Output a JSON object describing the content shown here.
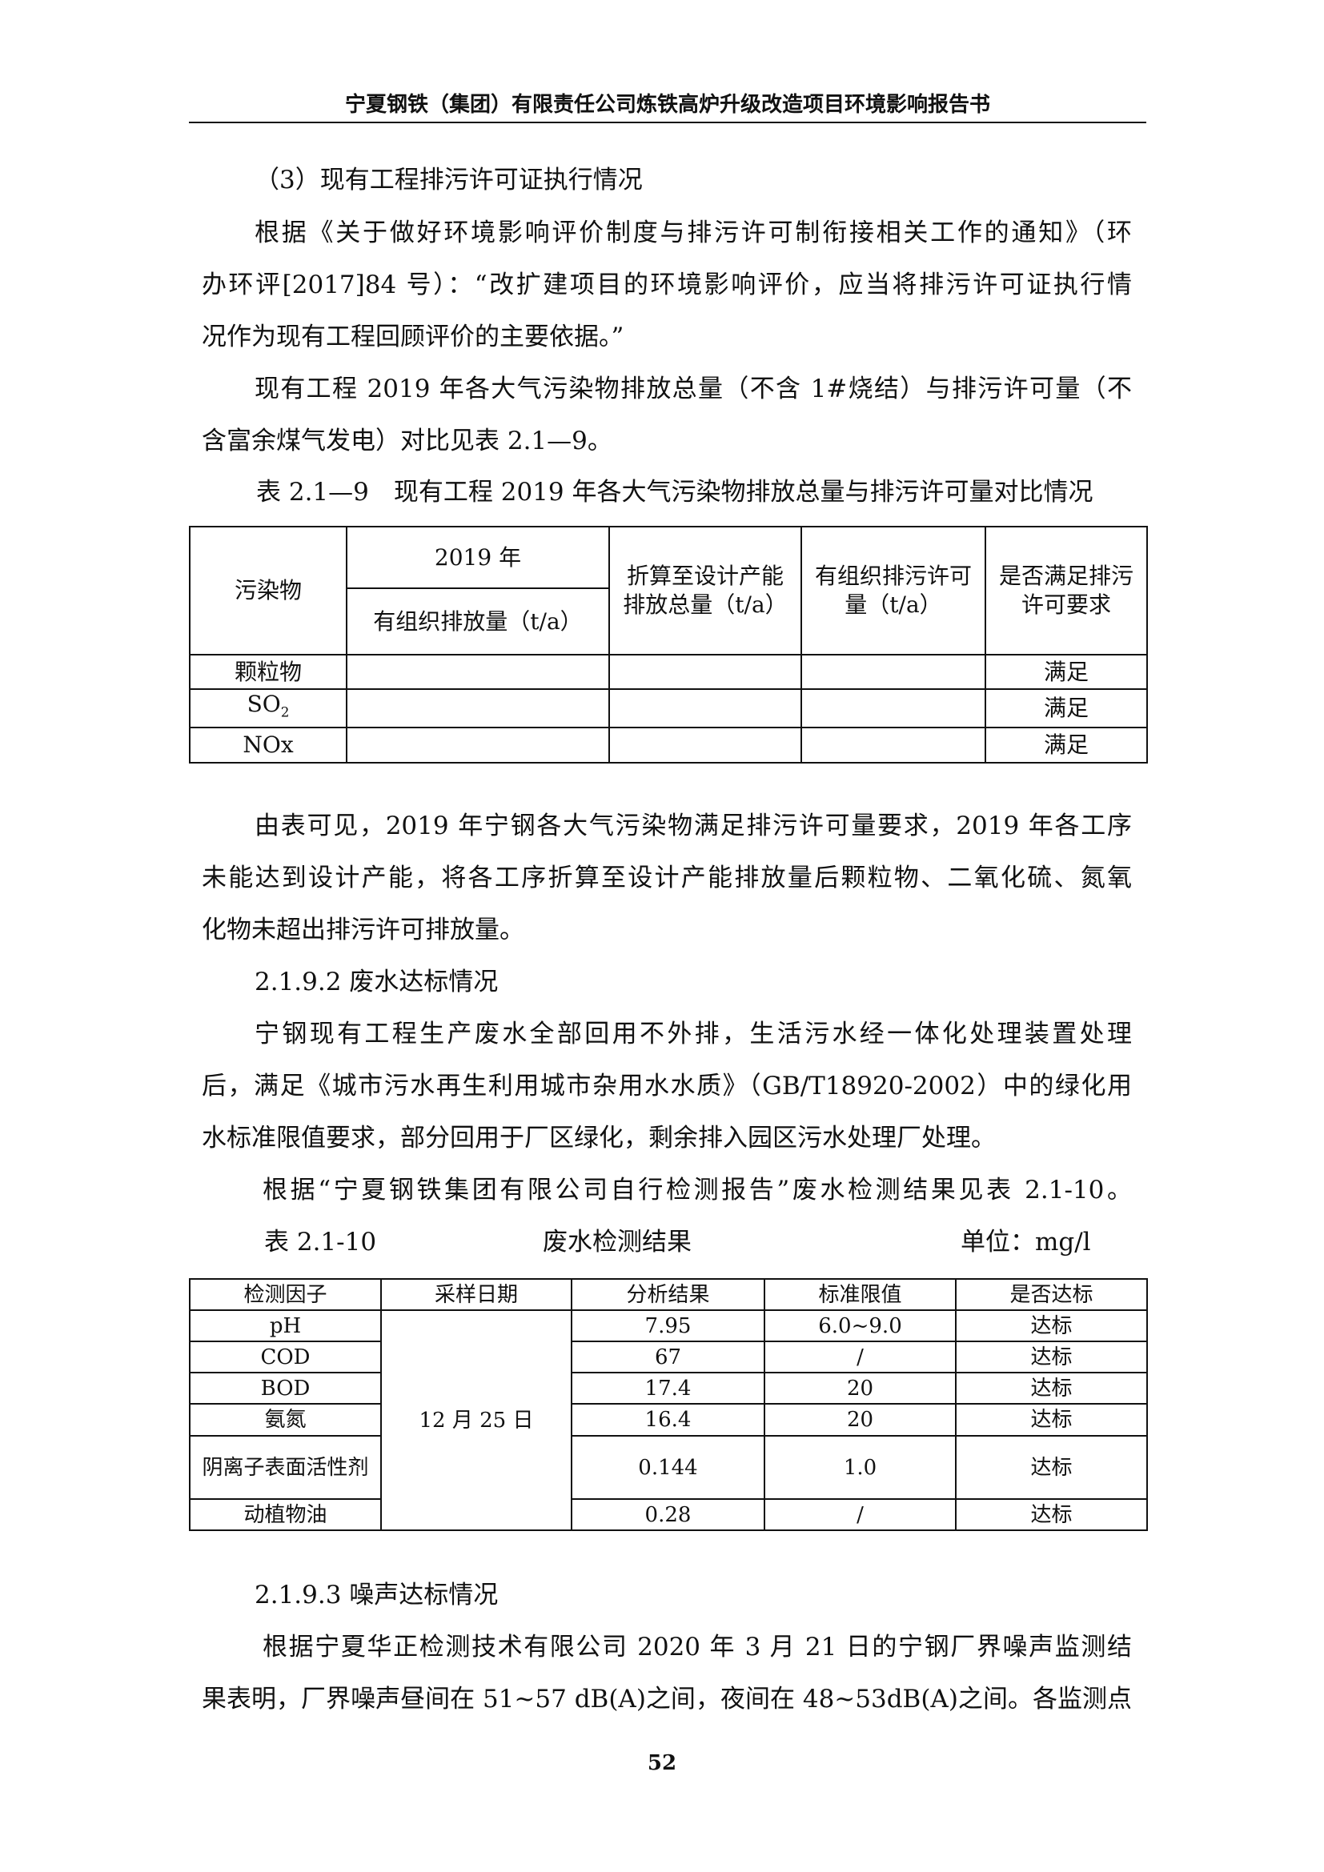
{
  "header": {
    "title": "宁夏钢铁（集团）有限责任公司炼铁高炉升级改造项目环境影响报告书"
  },
  "section_a": {
    "lines": [
      "（3）现有工程排污许可证执行情况",
      "根据《关于做好环境影响评价制度与排污许可制衔接相关工作的通知》（环",
      "办环评[2017]84 号）：“改扩建项目的环境影响评价，应当将排污许可证执行情",
      "况作为现有工程回顾评价的主要依据。”",
      "现有工程 2019 年各大气污染物排放总量（不含 1#烧结）与排污许可量（不",
      "含富余煤气发电）对比见表 2.1—9。"
    ]
  },
  "table1": {
    "caption": "表 2.1—9　现有工程 2019 年各大气污染物排放总量与排污许可量对比情况",
    "headers": {
      "pollutant": "污染物",
      "year": "2019 年",
      "organized_emission": "有组织排放量（t/a）",
      "converted": "折算至设计产能排放总量（t/a）",
      "permit": "有组织排污许可量（t/a）",
      "meets": "是否满足排污许可要求"
    },
    "rows": [
      {
        "pollutant": "颗粒物",
        "emission": "",
        "converted": "",
        "permit": "",
        "meets": "满足"
      },
      {
        "pollutant": "SO",
        "pollutant_sub": "2",
        "emission": "",
        "converted": "",
        "permit": "",
        "meets": "满足"
      },
      {
        "pollutant": "NOx",
        "emission": "",
        "converted": "",
        "permit": "",
        "meets": "满足"
      }
    ]
  },
  "section_b": {
    "lines": [
      "由表可见，2019 年宁钢各大气污染物满足排污许可量要求，2019 年各工序",
      "未能达到设计产能，将各工序折算至设计产能排放量后颗粒物、二氧化硫、氮氧",
      "化物未超出排污许可排放量。",
      "2.1.9.2  废水达标情况",
      "宁钢现有工程生产废水全部回用不外排，生活污水经一体化处理装置处理",
      "后，满足《城市污水再生利用城市杂用水水质》（GB/T18920-2002）中的绿化用",
      "水标准限值要求，部分回用于厂区绿化，剩余排入园区污水处理厂处理。",
      "根据“宁夏钢铁集团有限公司自行检测报告”废水检测结果见表 2.1-10。"
    ]
  },
  "table2": {
    "caption_no": "表 2.1-10",
    "caption_title": "废水检测结果",
    "caption_unit": "单位：mg/l",
    "headers": [
      "检测因子",
      "采样日期",
      "分析结果",
      "标准限值",
      "是否达标"
    ],
    "date": "12 月 25 日",
    "rows": [
      {
        "factor": "pH",
        "result": "7.95",
        "limit": "6.0~9.0",
        "ok": "达标"
      },
      {
        "factor": "COD",
        "result": "67",
        "limit": "/",
        "ok": "达标"
      },
      {
        "factor": "BOD",
        "result": "17.4",
        "limit": "20",
        "ok": "达标"
      },
      {
        "factor": "氨氮",
        "result": "16.4",
        "limit": "20",
        "ok": "达标"
      },
      {
        "factor": "阴离子表面活性剂",
        "result": "0.144",
        "limit": "1.0",
        "ok": "达标"
      },
      {
        "factor": "动植物油",
        "result": "0.28",
        "limit": "/",
        "ok": "达标"
      }
    ]
  },
  "section_c": {
    "lines": [
      "2.1.9.3  噪声达标情况",
      "根据宁夏华正检测技术有限公司 2020 年 3 月 21 日的宁钢厂界噪声监测结",
      "果表明，厂界噪声昼间在 51~57 dB(A)之间，夜间在 48~53dB(A)之间。各监测点"
    ]
  },
  "footer": {
    "page_number": "52"
  }
}
